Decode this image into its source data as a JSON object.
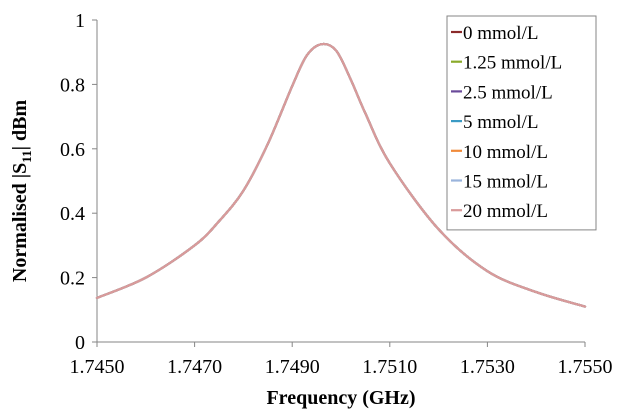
{
  "chart_data": {
    "type": "line",
    "title": "",
    "xlabel": "Frequency (GHz)",
    "ylabel_parts": {
      "prefix": "Normalised |S",
      "subscript": "11",
      "suffix": "| dBm"
    },
    "xlim": [
      1.745,
      1.755
    ],
    "ylim": [
      0,
      1
    ],
    "x_ticks": [
      "1.7450",
      "1.7470",
      "1.7490",
      "1.7510",
      "1.7530",
      "1.7550"
    ],
    "y_ticks": [
      "0",
      "0.2",
      "0.4",
      "0.6",
      "0.8",
      "1"
    ],
    "grid": false,
    "legend_position": "top-right",
    "x": [
      1.745,
      1.746,
      1.747,
      1.7475,
      1.748,
      1.7485,
      1.749,
      1.7493,
      1.7496,
      1.7499,
      1.7502,
      1.7505,
      1.751,
      1.752,
      1.753,
      1.754,
      1.755
    ],
    "series": [
      {
        "name": "0 mmol/L",
        "color": "#8b2a2a",
        "values": [
          0.137,
          0.2,
          0.3,
          0.375,
          0.47,
          0.615,
          0.795,
          0.89,
          0.925,
          0.905,
          0.815,
          0.71,
          0.555,
          0.35,
          0.22,
          0.155,
          0.11
        ]
      },
      {
        "name": "1.25 mmol/L",
        "color": "#8aaa2a",
        "values": [
          0.137,
          0.2,
          0.3,
          0.375,
          0.47,
          0.615,
          0.795,
          0.89,
          0.925,
          0.905,
          0.815,
          0.71,
          0.555,
          0.35,
          0.22,
          0.155,
          0.11
        ]
      },
      {
        "name": "2.5 mmol/L",
        "color": "#6a4a9a",
        "values": [
          0.137,
          0.2,
          0.3,
          0.375,
          0.47,
          0.615,
          0.795,
          0.89,
          0.925,
          0.905,
          0.815,
          0.71,
          0.555,
          0.35,
          0.22,
          0.155,
          0.11
        ]
      },
      {
        "name": "5 mmol/L",
        "color": "#3a9ac4",
        "values": [
          0.137,
          0.2,
          0.3,
          0.375,
          0.47,
          0.615,
          0.795,
          0.89,
          0.925,
          0.905,
          0.815,
          0.71,
          0.555,
          0.35,
          0.22,
          0.155,
          0.11
        ]
      },
      {
        "name": "10 mmol/L",
        "color": "#f08a3a",
        "values": [
          0.137,
          0.2,
          0.3,
          0.375,
          0.47,
          0.615,
          0.795,
          0.89,
          0.925,
          0.905,
          0.815,
          0.71,
          0.555,
          0.35,
          0.22,
          0.155,
          0.11
        ]
      },
      {
        "name": "15 mmol/L",
        "color": "#9ab4dc",
        "values": [
          0.137,
          0.2,
          0.3,
          0.375,
          0.47,
          0.615,
          0.795,
          0.89,
          0.925,
          0.905,
          0.815,
          0.71,
          0.555,
          0.35,
          0.22,
          0.155,
          0.11
        ]
      },
      {
        "name": "20 mmol/L",
        "color": "#d99a9a",
        "values": [
          0.137,
          0.2,
          0.3,
          0.375,
          0.47,
          0.615,
          0.795,
          0.89,
          0.925,
          0.905,
          0.815,
          0.71,
          0.555,
          0.35,
          0.22,
          0.155,
          0.11
        ]
      }
    ]
  }
}
